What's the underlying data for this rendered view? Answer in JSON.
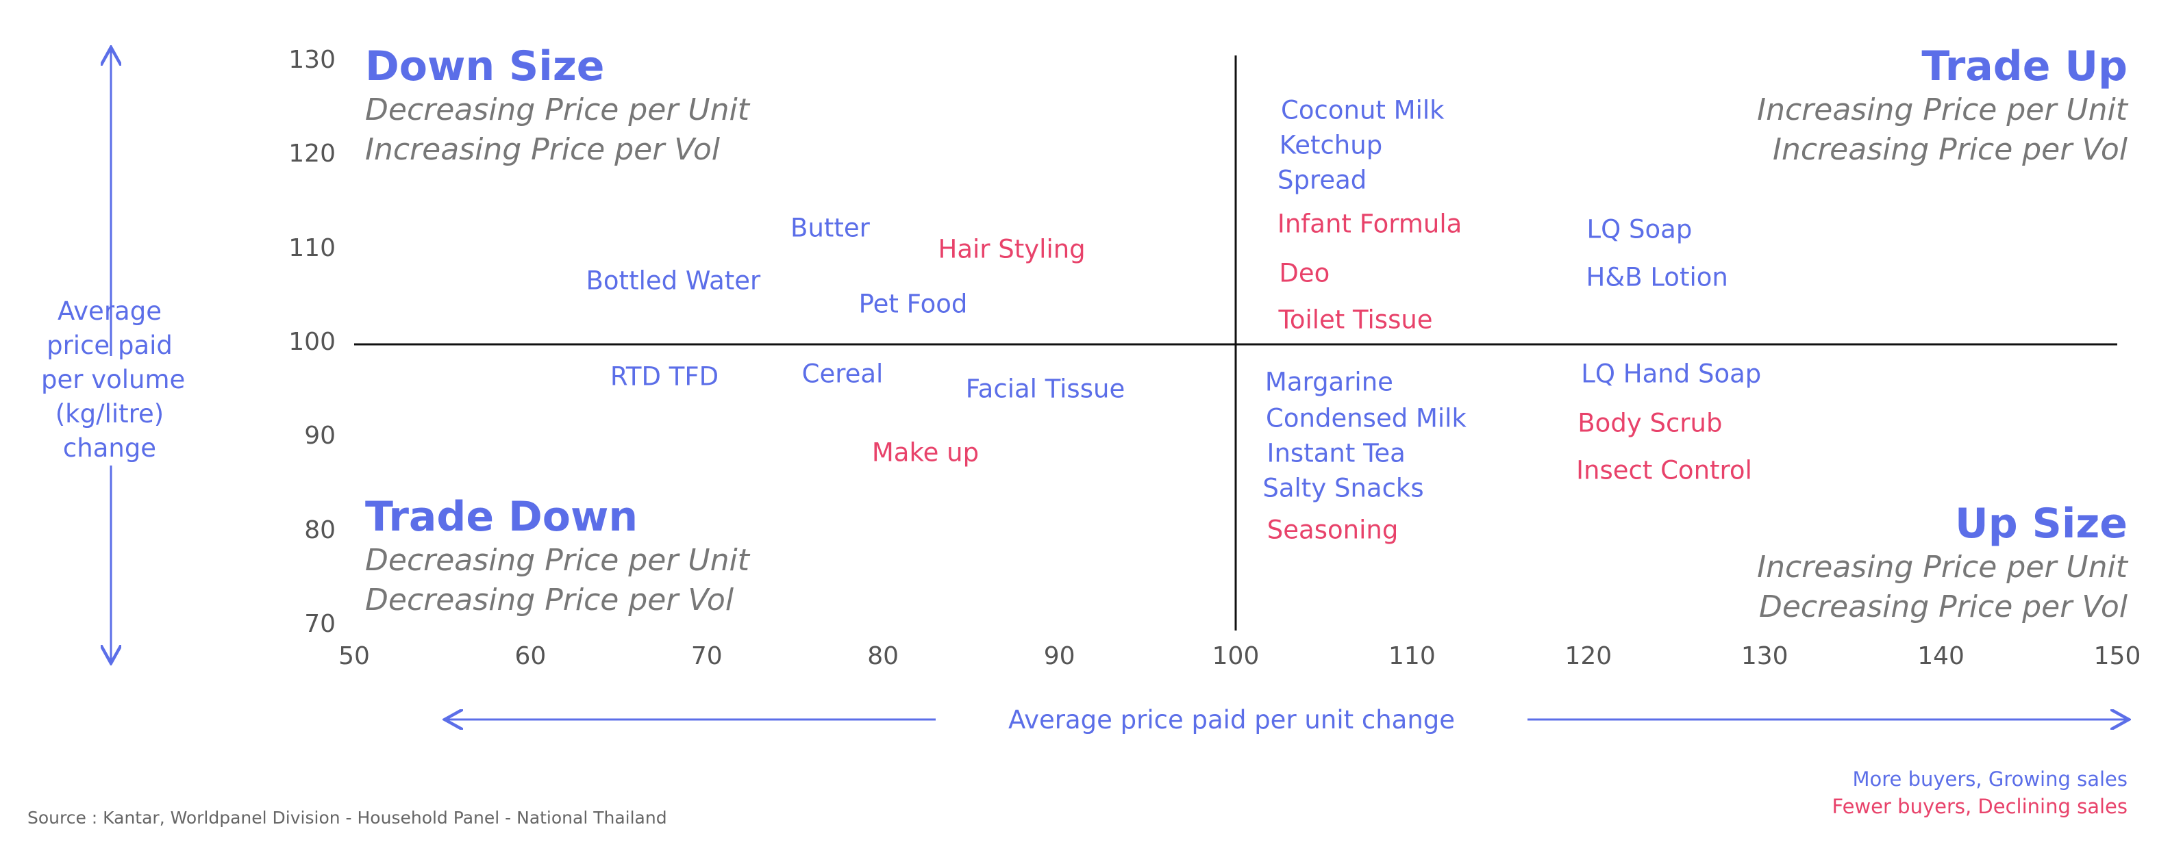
{
  "chart_data": {
    "type": "scatter",
    "xlabel": "Average price paid per unit change",
    "ylabel": "Average price paid per volume (kg/litre) change",
    "ylabel_lines": [
      "Average",
      "price paid",
      "per volume",
      "(kg/litre)",
      "change"
    ],
    "xlim": [
      50,
      150
    ],
    "ylim": [
      70,
      130
    ],
    "x_ticks": [
      50,
      60,
      70,
      80,
      90,
      100,
      110,
      120,
      130,
      140,
      150
    ],
    "y_ticks": [
      70,
      80,
      90,
      100,
      110,
      120,
      130
    ],
    "grid": false,
    "reference_lines": {
      "x": 100,
      "y": 100
    },
    "colors": {
      "growing": "#5b6ee8",
      "declining": "#e8426a"
    },
    "quadrants": [
      {
        "title": "Down Size",
        "lines": [
          "Decreasing Price per Unit",
          "Increasing Price per Vol"
        ],
        "position": "top-left"
      },
      {
        "title": "Trade Up",
        "lines": [
          "Increasing Price per Unit",
          "Increasing Price per Vol"
        ],
        "position": "top-right"
      },
      {
        "title": "Trade Down",
        "lines": [
          "Decreasing Price per Unit",
          "Decreasing Price per Vol"
        ],
        "position": "bottom-left"
      },
      {
        "title": "Up Size",
        "lines": [
          "Increasing Price per Unit",
          "Decreasing Price per Vol"
        ],
        "position": "bottom-right"
      }
    ],
    "points": [
      {
        "label": "Coconut Milk",
        "x": 107.2,
        "y": 124.9,
        "group": "growing"
      },
      {
        "label": "Ketchup",
        "x": 105.4,
        "y": 121.2,
        "group": "growing"
      },
      {
        "label": "Spread",
        "x": 104.9,
        "y": 117.5,
        "group": "growing"
      },
      {
        "label": "Infant Formula",
        "x": 107.6,
        "y": 112.8,
        "group": "declining"
      },
      {
        "label": "Deo",
        "x": 103.9,
        "y": 107.6,
        "group": "declining"
      },
      {
        "label": "Toilet Tissue",
        "x": 106.8,
        "y": 102.6,
        "group": "declining"
      },
      {
        "label": "LQ Soap",
        "x": 122.9,
        "y": 112.2,
        "group": "growing"
      },
      {
        "label": "H&B Lotion",
        "x": 123.9,
        "y": 107.1,
        "group": "growing"
      },
      {
        "label": "Butter",
        "x": 77.0,
        "y": 112.4,
        "group": "growing"
      },
      {
        "label": "Hair Styling",
        "x": 87.3,
        "y": 110.1,
        "group": "declining"
      },
      {
        "label": "Bottled Water",
        "x": 68.1,
        "y": 106.8,
        "group": "growing"
      },
      {
        "label": "Pet Food",
        "x": 81.7,
        "y": 104.3,
        "group": "growing"
      },
      {
        "label": "RTD TFD",
        "x": 67.6,
        "y": 96.6,
        "group": "growing"
      },
      {
        "label": "Cereal",
        "x": 77.7,
        "y": 96.9,
        "group": "growing"
      },
      {
        "label": "Facial Tissue",
        "x": 89.2,
        "y": 95.3,
        "group": "growing"
      },
      {
        "label": "Make up",
        "x": 82.4,
        "y": 88.5,
        "group": "declining"
      },
      {
        "label": "Margarine",
        "x": 105.3,
        "y": 96.0,
        "group": "growing"
      },
      {
        "label": "Condensed Milk",
        "x": 107.4,
        "y": 92.1,
        "group": "growing"
      },
      {
        "label": "Instant Tea",
        "x": 105.7,
        "y": 88.4,
        "group": "growing"
      },
      {
        "label": "Salty Snacks",
        "x": 106.1,
        "y": 84.7,
        "group": "growing"
      },
      {
        "label": "Seasoning",
        "x": 105.5,
        "y": 80.3,
        "group": "declining"
      },
      {
        "label": "LQ Hand Soap",
        "x": 124.7,
        "y": 96.9,
        "group": "growing"
      },
      {
        "label": "Body Scrub",
        "x": 123.5,
        "y": 91.6,
        "group": "declining"
      },
      {
        "label": "Insect Control",
        "x": 124.3,
        "y": 86.6,
        "group": "declining"
      }
    ],
    "legend": [
      {
        "label": "More buyers, Growing sales",
        "group": "growing"
      },
      {
        "label": "Fewer buyers, Declining sales",
        "group": "declining"
      }
    ],
    "legend_position": "bottom-right"
  },
  "source": "Source : Kantar, Worldpanel Division - Household Panel - National Thailand"
}
